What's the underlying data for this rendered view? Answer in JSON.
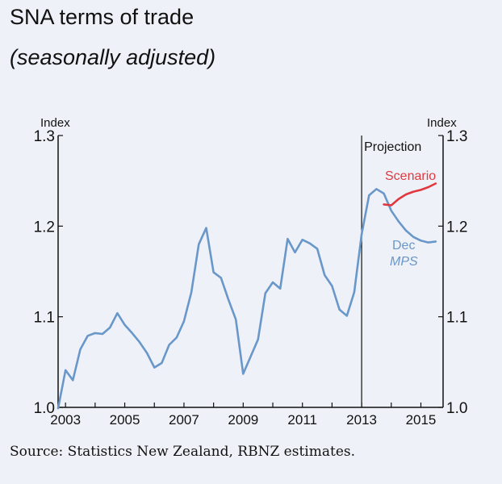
{
  "header": {
    "title": "SNA terms of trade",
    "subtitle": "(seasonally adjusted)"
  },
  "footer": {
    "source": "Source: Statistics New Zealand, RBNZ estimates."
  },
  "chart_data": {
    "type": "line",
    "ylabel_left": "Index",
    "ylabel_right": "Index",
    "ylim": [
      1.0,
      1.3
    ],
    "yticks": [
      "1.0",
      "1.1",
      "1.2",
      "1.3"
    ],
    "xlim": [
      2002.75,
      2015.75
    ],
    "xticks": [
      "2003",
      "2005",
      "2007",
      "2009",
      "2011",
      "2013",
      "2015"
    ],
    "grid": false,
    "projection_line_x": 2013.0,
    "projection_label": "Projection",
    "colors": {
      "dec_mps": "#6a97c9",
      "scenario": "#e0383f",
      "axis": "#111111"
    },
    "series": [
      {
        "name": "Dec MPS",
        "label_line1": "Dec",
        "label_line2": "MPS",
        "color": "#6a97c9",
        "x": [
          2002.75,
          2003.0,
          2003.25,
          2003.5,
          2003.75,
          2004.0,
          2004.25,
          2004.5,
          2004.75,
          2005.0,
          2005.25,
          2005.5,
          2005.75,
          2006.0,
          2006.25,
          2006.5,
          2006.75,
          2007.0,
          2007.25,
          2007.5,
          2007.75,
          2008.0,
          2008.25,
          2008.5,
          2008.75,
          2009.0,
          2009.25,
          2009.5,
          2009.75,
          2010.0,
          2010.25,
          2010.5,
          2010.75,
          2011.0,
          2011.25,
          2011.5,
          2011.75,
          2012.0,
          2012.25,
          2012.5,
          2012.75,
          2013.0,
          2013.25,
          2013.5,
          2013.75,
          2014.0,
          2014.25,
          2014.5,
          2014.75,
          2015.0,
          2015.25,
          2015.5
        ],
        "values": [
          0.999,
          1.041,
          1.03,
          1.064,
          1.079,
          1.082,
          1.081,
          1.088,
          1.104,
          1.091,
          1.082,
          1.072,
          1.06,
          1.044,
          1.049,
          1.069,
          1.077,
          1.095,
          1.127,
          1.18,
          1.198,
          1.149,
          1.143,
          1.119,
          1.097,
          1.037,
          1.056,
          1.075,
          1.126,
          1.138,
          1.131,
          1.186,
          1.171,
          1.185,
          1.181,
          1.175,
          1.146,
          1.134,
          1.108,
          1.101,
          1.127,
          1.191,
          1.234,
          1.241,
          1.236,
          1.217,
          1.205,
          1.195,
          1.188,
          1.184,
          1.182,
          1.183
        ]
      },
      {
        "name": "Scenario",
        "color": "#e0383f",
        "x": [
          2013.75,
          2014.0,
          2014.25,
          2014.5,
          2014.75,
          2015.0,
          2015.25,
          2015.5
        ],
        "values": [
          1.224,
          1.223,
          1.23,
          1.235,
          1.238,
          1.24,
          1.243,
          1.247
        ]
      }
    ]
  }
}
